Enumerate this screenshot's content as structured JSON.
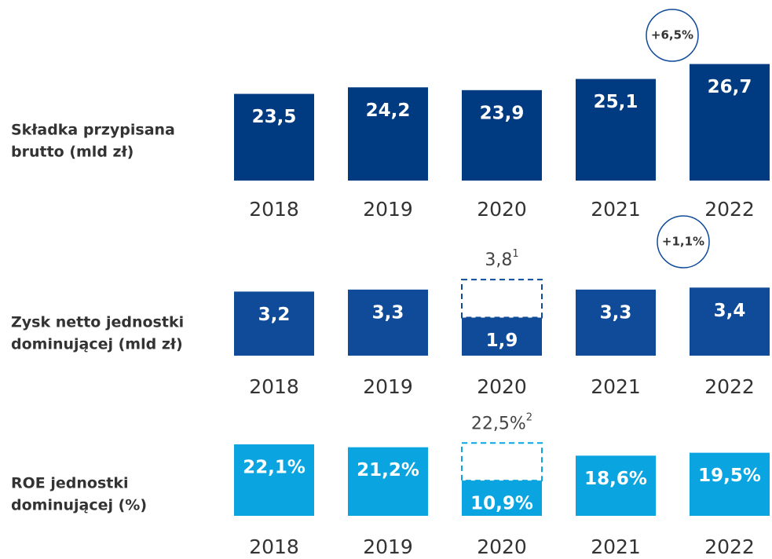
{
  "chart_data": [
    {
      "type": "bar",
      "title": [
        "Składka przypisana",
        "brutto (mld zł)"
      ],
      "categories": [
        "2018",
        "2019",
        "2020",
        "2021",
        "2022"
      ],
      "values": [
        23.5,
        24.2,
        23.9,
        25.1,
        26.7
      ],
      "value_labels": [
        "23,5",
        "24,2",
        "23,9",
        "25,1",
        "26,7"
      ],
      "color": "#003a80",
      "ylim": [
        14.2,
        27
      ],
      "growth": "+6,5%"
    },
    {
      "type": "bar",
      "title": [
        "Zysk netto jednostki",
        "dominującej (mld zł)"
      ],
      "categories": [
        "2018",
        "2019",
        "2020",
        "2021",
        "2022"
      ],
      "values": [
        3.2,
        3.3,
        1.9,
        3.3,
        3.4
      ],
      "value_labels": [
        "3,2",
        "3,3",
        "1,9",
        "3,3",
        "3,4"
      ],
      "adjusted_values": [
        null,
        null,
        3.8,
        null,
        null
      ],
      "adjusted_labels": [
        null,
        null,
        "3,8",
        null,
        null
      ],
      "footnotes": [
        null,
        null,
        "1",
        null,
        null
      ],
      "color": "#0f4b98",
      "ylim": [
        0,
        4
      ],
      "growth": "+1,1%"
    },
    {
      "type": "bar",
      "title": [
        "ROE jednostki",
        "dominującej (%)"
      ],
      "categories": [
        "2018",
        "2019",
        "2020",
        "2021",
        "2022"
      ],
      "values": [
        22.1,
        21.2,
        10.9,
        18.6,
        19.5
      ],
      "value_labels": [
        "22,1%",
        "21,2%",
        "10,9%",
        "18,6%",
        "19,5%"
      ],
      "adjusted_values": [
        null,
        null,
        22.5,
        null,
        null
      ],
      "adjusted_labels": [
        null,
        null,
        "22,5%",
        null,
        null
      ],
      "footnotes": [
        null,
        null,
        "2",
        null,
        null
      ],
      "color": "#0aa5e0",
      "ylim": [
        0,
        25
      ]
    }
  ]
}
